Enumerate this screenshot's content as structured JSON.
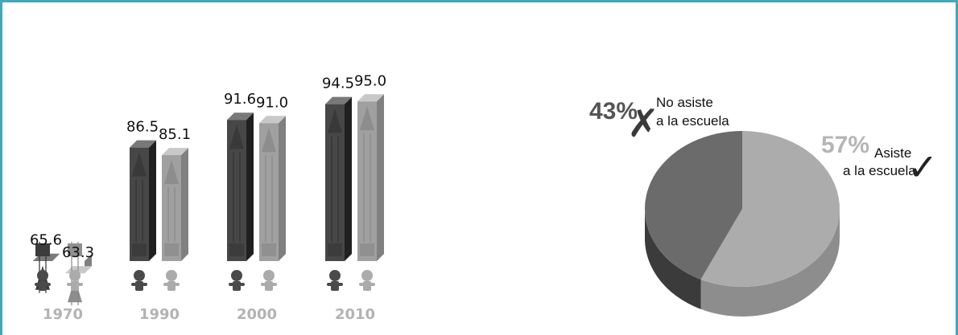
{
  "chart_data": [
    {
      "type": "bar",
      "categories": [
        "1970",
        "1990",
        "2000",
        "2010"
      ],
      "series": [
        {
          "values": [
            65.6,
            86.5,
            91.6,
            94.5
          ],
          "color": "#474747"
        },
        {
          "values": [
            63.3,
            85.1,
            91.0,
            95.0
          ],
          "color": "#a0a0a0"
        }
      ],
      "value_labels": [
        [
          "65.6",
          "63.3"
        ],
        [
          "86.5",
          "85.1"
        ],
        [
          "91.6",
          "91.0"
        ],
        [
          "94.5",
          "95.0"
        ]
      ]
    },
    {
      "type": "pie",
      "slices": [
        {
          "label_line1": "No asiste",
          "label_line2": "a la escuela",
          "value": 43,
          "pct_text": "43%",
          "mark": "✗",
          "color": "#6b6b6b"
        },
        {
          "label_line1": "Asiste",
          "label_line2": "a la escuela",
          "value": 57,
          "pct_text": "57%",
          "mark": "✓",
          "color": "#acacac"
        }
      ]
    }
  ]
}
